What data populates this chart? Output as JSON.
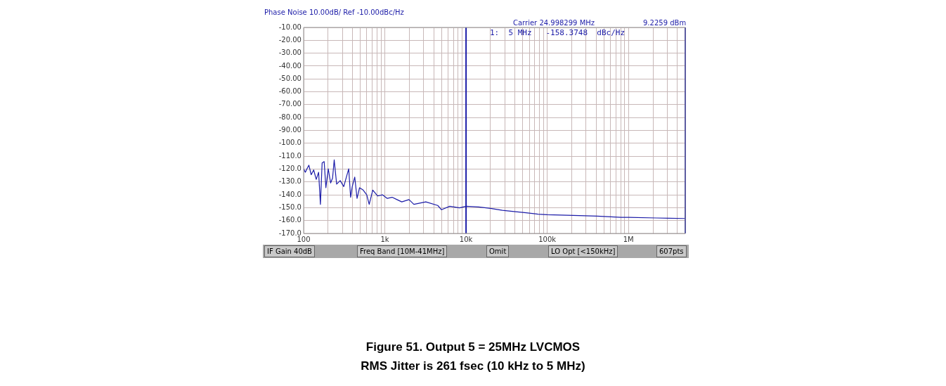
{
  "chart_data": {
    "type": "line",
    "title": "Figure 51. Output 5 = 25MHz LVCMOS",
    "subtitle": "RMS Jitter is 261 fsec (10 kHz to 5 MHz)",
    "log": "x",
    "grid": true,
    "legend": false,
    "marker": "none",
    "line_style": "solid",
    "xlim": [
      100,
      5000000
    ],
    "xticks": [
      100,
      {
        "value": 200,
        "label": null
      },
      {
        "value": 300,
        "label": null
      },
      {
        "value": 400,
        "label": null
      },
      {
        "value": 500,
        "label": null
      },
      {
        "value": 600,
        "label": null
      },
      {
        "value": 700,
        "label": null
      },
      {
        "value": 800,
        "label": null
      },
      {
        "value": 900,
        "label": null
      },
      {
        "value": 1000,
        "label": "1k"
      },
      {
        "value": 2000,
        "label": null
      },
      {
        "value": 3000,
        "label": null
      },
      {
        "value": 4000,
        "label": null
      },
      {
        "value": 5000,
        "label": null
      },
      {
        "value": 6000,
        "label": null
      },
      {
        "value": 7000,
        "label": null
      },
      {
        "value": 8000,
        "label": null
      },
      {
        "value": 9000,
        "label": null
      },
      {
        "value": 10000,
        "label": "10k"
      },
      {
        "value": 20000,
        "label": null
      },
      {
        "value": 30000,
        "label": null
      },
      {
        "value": 40000,
        "label": null
      },
      {
        "value": 50000,
        "label": null
      },
      {
        "value": 60000,
        "label": null
      },
      {
        "value": 70000,
        "label": null
      },
      {
        "value": 80000,
        "label": null
      },
      {
        "value": 90000,
        "label": null
      },
      {
        "value": 100000,
        "label": "100k"
      },
      {
        "value": 200000,
        "label": null
      },
      {
        "value": 300000,
        "label": null
      },
      {
        "value": 400000,
        "label": null
      },
      {
        "value": 500000,
        "label": null
      },
      {
        "value": 600000,
        "label": null
      },
      {
        "value": 700000,
        "label": null
      },
      {
        "value": 800000,
        "label": null
      },
      {
        "value": 900000,
        "label": null
      },
      {
        "value": 1000000,
        "label": "1M"
      },
      {
        "value": 2000000,
        "label": null
      },
      {
        "value": 3000000,
        "label": null
      },
      {
        "value": 4000000,
        "label": null
      }
    ],
    "ylim": [
      -170,
      -10
    ],
    "yticks": [
      {
        "value": -10,
        "label": "-10.00"
      },
      {
        "value": -20,
        "label": "-20.00"
      },
      {
        "value": -30,
        "label": "-30.00"
      },
      {
        "value": -40,
        "label": "-40.00"
      },
      {
        "value": -50,
        "label": "-50.00"
      },
      {
        "value": -60,
        "label": "-60.00"
      },
      {
        "value": -70,
        "label": "-70.00"
      },
      {
        "value": -80,
        "label": "-80.00"
      },
      {
        "value": -90,
        "label": "-90.00"
      },
      {
        "value": -100,
        "label": "-100.0"
      },
      {
        "value": -110,
        "label": "-110.0"
      },
      {
        "value": -120,
        "label": "-120.0"
      },
      {
        "value": -130,
        "label": "-130.0"
      },
      {
        "value": -140,
        "label": "-140.0"
      },
      {
        "value": -150,
        "label": "-150.0"
      },
      {
        "value": -160,
        "label": "-160.0"
      },
      {
        "value": -170,
        "label": "-170.0"
      }
    ],
    "series": [
      {
        "color": "#1c1ca8",
        "x": [
          100,
          105,
          110,
          116,
          124,
          133,
          143,
          153,
          161,
          169,
          179,
          188,
          201,
          215,
          227,
          238,
          255,
          282,
          312,
          359,
          379,
          397,
          426,
          455,
          488,
          541,
          599,
          642,
          710,
          814,
          934,
          1071,
          1229,
          1410,
          1617,
          1985,
          2277,
          3198,
          4486,
          4988,
          6302,
          8306,
          10000,
          14300,
          20000,
          28000,
          39000,
          55000,
          77000,
          100000,
          208000,
          410000,
          810000,
          1000000,
          2200000,
          3100000,
          5000000
        ],
        "values": [
          -119.8,
          -122.5,
          -119.8,
          -117.0,
          -124.4,
          -120.7,
          -128.0,
          -122.5,
          -147.4,
          -115.2,
          -114.2,
          -134.5,
          -119.8,
          -130.8,
          -127.1,
          -112.9,
          -131.7,
          -129.0,
          -133.6,
          -119.8,
          -141.9,
          -133.6,
          -126.2,
          -142.8,
          -134.5,
          -136.3,
          -140.0,
          -147.4,
          -136.3,
          -140.9,
          -140.0,
          -142.8,
          -141.9,
          -143.7,
          -145.5,
          -143.7,
          -147.4,
          -145.5,
          -148.3,
          -151.6,
          -148.9,
          -150.1,
          -148.9,
          -149.5,
          -150.5,
          -152.0,
          -153.0,
          -154.0,
          -155.0,
          -155.5,
          -156.0,
          -156.5,
          -157.5,
          -157.5,
          -158.0,
          -158.2,
          -158.4
        ]
      }
    ],
    "ref_lines": [
      {
        "axis": "x",
        "value": 10000,
        "color": "#1c1ca8"
      },
      {
        "axis": "x",
        "value": 5000000,
        "color": "#1c1ca8"
      }
    ],
    "annotations": [
      "Phase Noise 10.00dB/ Ref -10.00dBc/Hz",
      "Carrier 24.998299 MHz",
      "9.2259 dBm",
      "1:  5 MHz   -158.3748  dBc/Hz",
      "IF Gain 40dB",
      "Freq Band [10M-41MHz]",
      "Omit",
      "LO Opt [<150kHz]",
      "607pts"
    ]
  }
}
